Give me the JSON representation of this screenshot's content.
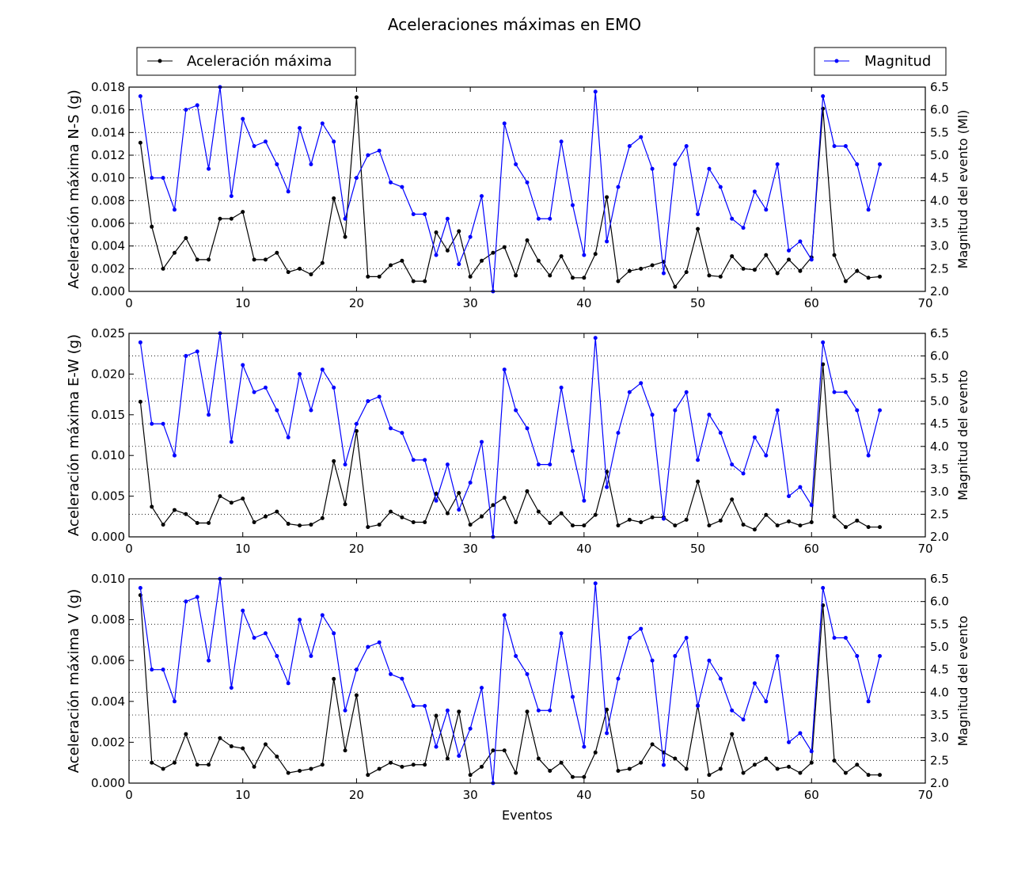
{
  "chart_data": {
    "type": "line",
    "title": "Aceleraciones máximas en EMO",
    "xlabel": "Eventos",
    "xlim": [
      0,
      70
    ],
    "xticks": [
      0,
      10,
      20,
      30,
      40,
      50,
      60,
      70
    ],
    "legend": {
      "left": "Aceleración máxima",
      "right": "Magnitud",
      "placement": "above-plot, left and right"
    },
    "colors": {
      "accel": "#000000",
      "magnitude": "#0000ff"
    },
    "x": [
      1,
      2,
      3,
      4,
      5,
      6,
      7,
      8,
      9,
      10,
      11,
      12,
      13,
      14,
      15,
      16,
      17,
      18,
      19,
      20,
      21,
      22,
      23,
      24,
      25,
      26,
      27,
      28,
      29,
      30,
      31,
      32,
      33,
      34,
      35,
      36,
      37,
      38,
      39,
      40,
      41,
      42,
      43,
      44,
      45,
      46,
      47,
      48,
      49,
      50,
      51,
      52,
      53,
      54,
      55,
      56,
      57,
      58,
      59,
      60,
      61,
      62,
      63,
      64,
      65,
      66
    ],
    "magnitude": [
      6.3,
      4.5,
      4.5,
      3.8,
      6.0,
      6.1,
      4.7,
      6.5,
      4.1,
      5.8,
      5.2,
      5.3,
      4.8,
      4.2,
      5.6,
      4.8,
      5.7,
      5.3,
      3.6,
      4.5,
      5.0,
      5.1,
      4.4,
      4.3,
      3.7,
      3.7,
      2.8,
      3.6,
      2.6,
      3.2,
      4.1,
      2.0,
      5.7,
      4.8,
      4.4,
      3.6,
      3.6,
      5.3,
      3.9,
      2.8,
      6.4,
      3.1,
      4.3,
      5.2,
      5.4,
      4.7,
      2.4,
      4.8,
      5.2,
      3.7,
      4.7,
      4.3,
      3.6,
      3.4,
      4.2,
      3.8,
      4.8,
      2.9,
      3.1,
      2.7,
      6.3,
      5.2,
      5.2,
      4.8,
      3.8,
      4.8
    ],
    "panels": [
      {
        "ylabel": "Aceleración máxima N-S (g)",
        "y2label": "Magnitud del evento (Ml)",
        "ylim": [
          0,
          0.018
        ],
        "ystep": 0.002,
        "ydecimals": 3,
        "y2lim": [
          2.0,
          6.5
        ],
        "values": [
          0.0131,
          0.0057,
          0.002,
          0.0034,
          0.0047,
          0.0028,
          0.0028,
          0.0064,
          0.0064,
          0.007,
          0.0028,
          0.0028,
          0.0034,
          0.0017,
          0.002,
          0.0015,
          0.0025,
          0.0082,
          0.0048,
          0.0171,
          0.0013,
          0.0013,
          0.0023,
          0.0027,
          0.0009,
          0.0009,
          0.0052,
          0.0036,
          0.0053,
          0.0013,
          0.0027,
          0.0034,
          0.0039,
          0.0014,
          0.0045,
          0.0027,
          0.0014,
          0.0031,
          0.0012,
          0.0012,
          0.0033,
          0.0083,
          0.0009,
          0.0018,
          0.002,
          0.0023,
          0.0026,
          0.0004,
          0.0017,
          0.0055,
          0.0014,
          0.0013,
          0.0031,
          0.002,
          0.0019,
          0.0032,
          0.0016,
          0.0028,
          0.0018,
          0.003,
          0.0161,
          0.0032,
          0.0009,
          0.0018,
          0.0012,
          0.0013
        ]
      },
      {
        "ylabel": "Aceleración máxima E-W (g)",
        "y2label": "Magnitud del evento",
        "ylim": [
          0,
          0.025
        ],
        "ystep": 0.005,
        "ydecimals": 3,
        "y2lim": [
          2.0,
          6.5
        ],
        "values": [
          0.0166,
          0.0037,
          0.0015,
          0.0033,
          0.0028,
          0.0017,
          0.0017,
          0.005,
          0.0042,
          0.0047,
          0.0018,
          0.0025,
          0.0031,
          0.0016,
          0.0014,
          0.0015,
          0.0023,
          0.0093,
          0.004,
          0.013,
          0.0012,
          0.0015,
          0.0031,
          0.0024,
          0.0018,
          0.0018,
          0.0053,
          0.0029,
          0.0054,
          0.0015,
          0.0025,
          0.0039,
          0.0048,
          0.0018,
          0.0056,
          0.0031,
          0.0017,
          0.0029,
          0.0014,
          0.0014,
          0.0027,
          0.008,
          0.0014,
          0.0021,
          0.0018,
          0.0024,
          0.0024,
          0.0014,
          0.0021,
          0.0068,
          0.0014,
          0.002,
          0.0046,
          0.0015,
          0.0009,
          0.0027,
          0.0014,
          0.0019,
          0.0014,
          0.0018,
          0.0212,
          0.0025,
          0.0012,
          0.002,
          0.0012,
          0.0012
        ]
      },
      {
        "ylabel": "Aceleración máxima V (g)",
        "y2label": "Magnitud del evento",
        "ylim": [
          0,
          0.01
        ],
        "ystep": 0.002,
        "ydecimals": 3,
        "y2lim": [
          2.0,
          6.5
        ],
        "values": [
          0.0092,
          0.001,
          0.0007,
          0.001,
          0.0024,
          0.0009,
          0.0009,
          0.0022,
          0.0018,
          0.0017,
          0.0008,
          0.0019,
          0.0013,
          0.0005,
          0.0006,
          0.0007,
          0.0009,
          0.0051,
          0.0016,
          0.0043,
          0.0004,
          0.0007,
          0.001,
          0.0008,
          0.0009,
          0.0009,
          0.0033,
          0.0012,
          0.0035,
          0.0004,
          0.0008,
          0.0016,
          0.0016,
          0.0005,
          0.0035,
          0.0012,
          0.0006,
          0.001,
          0.0003,
          0.0003,
          0.0015,
          0.0036,
          0.0006,
          0.0007,
          0.001,
          0.0019,
          0.0015,
          0.0012,
          0.0007,
          0.0038,
          0.0004,
          0.0007,
          0.0024,
          0.0005,
          0.0009,
          0.0012,
          0.0007,
          0.0008,
          0.0005,
          0.001,
          0.0087,
          0.0011,
          0.0005,
          0.0009,
          0.0004,
          0.0004
        ]
      }
    ]
  }
}
